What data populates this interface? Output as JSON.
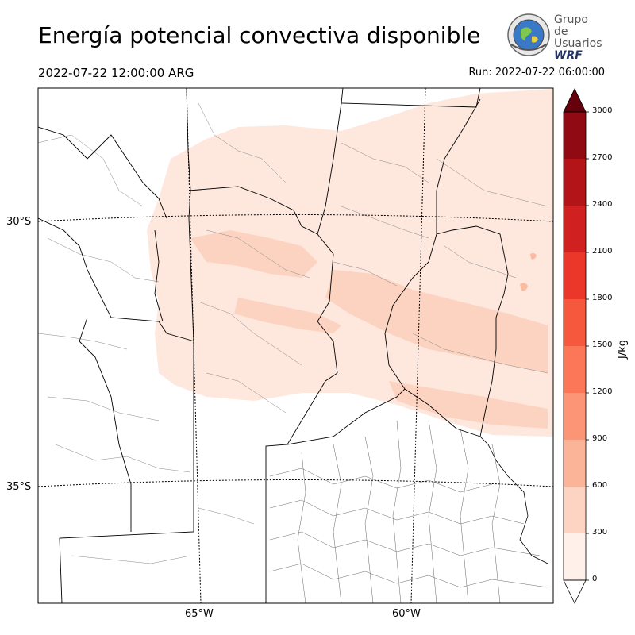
{
  "title": "Energía potencial convectiva disponible",
  "valid_time": "2022-07-22 12:00:00 ARG",
  "run_time": "Run: 2022-07-22 06:00:00",
  "logo": {
    "line1": "Grupo de",
    "line2": "Usuarios",
    "line3": "WRF",
    "icon": "globe-seal-icon"
  },
  "map": {
    "lat_labels": [
      "30°S",
      "35°S"
    ],
    "lon_labels": [
      "65°W",
      "60°W"
    ],
    "cape_fill_colors": [
      "#fee7dc",
      "#fcd3c1",
      "#fcbba1"
    ]
  },
  "colorbar": {
    "unit": "J/kg",
    "ticks": [
      "0",
      "300",
      "600",
      "900",
      "1200",
      "1500",
      "1800",
      "2100",
      "2400",
      "2700",
      "3000"
    ],
    "colors": [
      "#fff0ea",
      "#fdd4c2",
      "#fcb499",
      "#fc9575",
      "#fb7757",
      "#f6583e",
      "#eb372a",
      "#d0201f",
      "#b31418",
      "#8f0a12",
      "#67000d"
    ],
    "extend": "both"
  }
}
